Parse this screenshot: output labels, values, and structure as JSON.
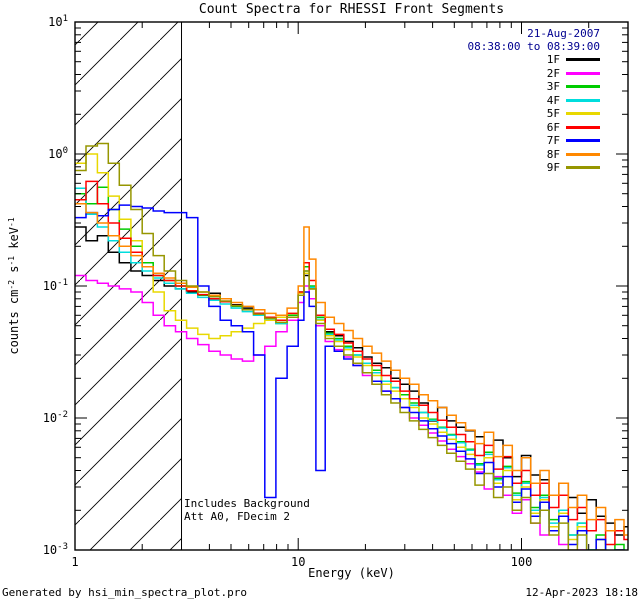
{
  "title": "Count Spectra for RHESSI Front Segments",
  "legend": {
    "date": "21-Aug-2007",
    "time_range": "08:38:00 to 08:39:00",
    "date_color": "#000090"
  },
  "annotations": {
    "line1": "Includes Background",
    "line2": "Att A0, FDecim 2"
  },
  "footer": {
    "left": "Generated by hsi_min_spectra_plot.pro",
    "right": "12-Apr-2023 18:18"
  },
  "chart_data": {
    "type": "line",
    "draw_style": "steps-post",
    "title": "Count Spectra for RHESSI Front Segments",
    "xlabel": "Energy (keV)",
    "ylabel": "counts cm⁻² s⁻¹ keV⁻¹",
    "ylabel_parts": [
      {
        "t": "counts cm"
      },
      {
        "t": "-2",
        "sup": true
      },
      {
        "t": " s"
      },
      {
        "t": "-1",
        "sup": true
      },
      {
        "t": " keV"
      },
      {
        "t": "-1",
        "sup": true
      }
    ],
    "xscale": "log",
    "yscale": "log",
    "xlim": [
      1,
      300
    ],
    "ylim": [
      0.001,
      10
    ],
    "grid": false,
    "legend_position": "top-right",
    "x_ticks": [
      {
        "value": 1,
        "label": "1"
      },
      {
        "value": 10,
        "label": "10"
      },
      {
        "value": 100,
        "label": "100"
      }
    ],
    "y_ticks": [
      {
        "value": 10,
        "base": "10",
        "exp": "1"
      },
      {
        "value": 1,
        "base": "10",
        "exp": "0"
      },
      {
        "value": 0.1,
        "base": "10",
        "exp": "-1"
      },
      {
        "value": 0.01,
        "base": "10",
        "exp": "-2"
      },
      {
        "value": 0.001,
        "base": "10",
        "exp": "-3"
      }
    ],
    "hatched_region": {
      "xmin": 1,
      "xmax": 3
    },
    "energies_keV": [
      1.0,
      1.12,
      1.26,
      1.41,
      1.58,
      1.78,
      2.0,
      2.24,
      2.51,
      2.82,
      3.16,
      3.55,
      3.98,
      4.47,
      5.01,
      5.62,
      6.31,
      7.08,
      7.94,
      8.91,
      10.0,
      10.6,
      11.2,
      12.0,
      13.2,
      14.5,
      16.0,
      17.6,
      19.4,
      21.4,
      23.6,
      26.0,
      28.6,
      31.5,
      34.7,
      38.2,
      42.1,
      46.3,
      51.0,
      56.2,
      61.9,
      68.1,
      75.0,
      82.6,
      91.0,
      100,
      110,
      121,
      133,
      147,
      162,
      178,
      196,
      216,
      238,
      262,
      288
    ],
    "series": [
      {
        "name": "1F",
        "color": "#000000",
        "values": [
          0.28,
          0.22,
          0.24,
          0.18,
          0.15,
          0.13,
          0.12,
          0.11,
          0.1,
          0.095,
          0.09,
          0.085,
          0.088,
          0.08,
          0.072,
          0.068,
          0.062,
          0.058,
          0.055,
          0.06,
          0.085,
          0.12,
          0.095,
          0.06,
          0.045,
          0.042,
          0.038,
          0.034,
          0.029,
          0.026,
          0.024,
          0.02,
          0.018,
          0.016,
          0.013,
          0.0095,
          0.012,
          0.0095,
          0.0085,
          0.008,
          0.0072,
          0.0055,
          0.0068,
          0.005,
          0.0036,
          0.0052,
          0.0037,
          0.0034,
          0.0026,
          0.0032,
          0.0025,
          0.0019,
          0.0024,
          0.0018,
          0.0016,
          0.0013,
          0.0015
        ]
      },
      {
        "name": "2F",
        "color": "#ff00ff",
        "values": [
          0.12,
          0.11,
          0.105,
          0.1,
          0.095,
          0.09,
          0.075,
          0.06,
          0.05,
          0.045,
          0.04,
          0.036,
          0.032,
          0.03,
          0.028,
          0.027,
          0.03,
          0.035,
          0.045,
          0.055,
          0.075,
          0.1,
          0.08,
          0.05,
          0.038,
          0.033,
          0.029,
          0.025,
          0.021,
          0.018,
          0.016,
          0.014,
          0.012,
          0.01,
          0.0088,
          0.0077,
          0.0067,
          0.0058,
          0.0051,
          0.0045,
          0.0039,
          0.0029,
          0.0036,
          0.0026,
          0.0019,
          0.0024,
          0.0016,
          0.0013,
          0.0015,
          0.0011,
          0.0008,
          0.001,
          0.0007,
          0.00085,
          0.0006,
          0.00075,
          0.00055
        ]
      },
      {
        "name": "3F",
        "color": "#00cc00",
        "values": [
          0.5,
          0.42,
          0.56,
          0.38,
          0.27,
          0.2,
          0.15,
          0.12,
          0.11,
          0.1,
          0.092,
          0.085,
          0.08,
          0.076,
          0.07,
          0.066,
          0.06,
          0.056,
          0.052,
          0.06,
          0.09,
          0.14,
          0.1,
          0.058,
          0.044,
          0.04,
          0.035,
          0.03,
          0.026,
          0.023,
          0.019,
          0.017,
          0.015,
          0.013,
          0.011,
          0.0098,
          0.0085,
          0.0075,
          0.0066,
          0.0058,
          0.0045,
          0.0055,
          0.0035,
          0.0043,
          0.0027,
          0.0033,
          0.0021,
          0.0026,
          0.0017,
          0.002,
          0.0013,
          0.0016,
          0.001,
          0.0013,
          0.00085,
          0.0011,
          0.0008
        ]
      },
      {
        "name": "4F",
        "color": "#00dddd",
        "values": [
          0.55,
          0.35,
          0.28,
          0.22,
          0.18,
          0.15,
          0.13,
          0.115,
          0.105,
          0.095,
          0.088,
          0.082,
          0.078,
          0.073,
          0.068,
          0.064,
          0.06,
          0.056,
          0.052,
          0.058,
          0.088,
          0.13,
          0.098,
          0.056,
          0.043,
          0.039,
          0.034,
          0.03,
          0.026,
          0.022,
          0.019,
          0.017,
          0.014,
          0.0125,
          0.011,
          0.0096,
          0.0084,
          0.0074,
          0.0065,
          0.0057,
          0.0044,
          0.0053,
          0.0034,
          0.0042,
          0.0026,
          0.0032,
          0.002,
          0.0025,
          0.0016,
          0.002,
          0.0013,
          0.0016,
          0.001,
          0.0012,
          0.0008,
          0.001,
          0.00075
        ]
      },
      {
        "name": "5F",
        "color": "#e8d800",
        "values": [
          0.85,
          1.0,
          0.72,
          0.48,
          0.32,
          0.22,
          0.14,
          0.09,
          0.065,
          0.055,
          0.048,
          0.043,
          0.04,
          0.042,
          0.045,
          0.048,
          0.052,
          0.055,
          0.058,
          0.062,
          0.088,
          0.125,
          0.095,
          0.055,
          0.042,
          0.038,
          0.033,
          0.029,
          0.025,
          0.021,
          0.018,
          0.016,
          0.014,
          0.012,
          0.01,
          0.009,
          0.0078,
          0.0069,
          0.006,
          0.0053,
          0.0041,
          0.005,
          0.0032,
          0.004,
          0.0024,
          0.003,
          0.0019,
          0.0024,
          0.0015,
          0.0019,
          0.0012,
          0.0015,
          0.00095,
          0.0012,
          0.00075,
          0.001,
          0.0007
        ]
      },
      {
        "name": "6F",
        "color": "#ff0000",
        "values": [
          0.45,
          0.62,
          0.42,
          0.3,
          0.23,
          0.18,
          0.14,
          0.12,
          0.11,
          0.1,
          0.092,
          0.086,
          0.08,
          0.076,
          0.071,
          0.066,
          0.062,
          0.058,
          0.055,
          0.062,
          0.09,
          0.15,
          0.11,
          0.06,
          0.047,
          0.043,
          0.037,
          0.032,
          0.028,
          0.025,
          0.021,
          0.019,
          0.016,
          0.014,
          0.0125,
          0.011,
          0.0096,
          0.0085,
          0.0075,
          0.0066,
          0.0052,
          0.0062,
          0.0041,
          0.0051,
          0.0032,
          0.004,
          0.0026,
          0.0032,
          0.0021,
          0.0026,
          0.0017,
          0.0021,
          0.0014,
          0.0017,
          0.0011,
          0.0014,
          0.0012
        ]
      },
      {
        "name": "7F",
        "color": "#0000ff",
        "values": [
          0.33,
          0.36,
          0.34,
          0.38,
          0.41,
          0.4,
          0.39,
          0.37,
          0.36,
          0.36,
          0.33,
          0.1,
          0.07,
          0.055,
          0.05,
          0.045,
          0.03,
          0.0025,
          0.02,
          0.035,
          0.055,
          0.09,
          0.07,
          0.004,
          0.035,
          0.032,
          0.028,
          0.025,
          0.022,
          0.019,
          0.016,
          0.014,
          0.012,
          0.011,
          0.0095,
          0.0083,
          0.0073,
          0.0064,
          0.0056,
          0.0049,
          0.0038,
          0.0046,
          0.003,
          0.0036,
          0.0023,
          0.0029,
          0.0018,
          0.0023,
          0.0014,
          0.0018,
          0.0011,
          0.0014,
          0.00095,
          0.0012,
          0.0008,
          0.001,
          0.0007
        ]
      },
      {
        "name": "8F",
        "color": "#ff8800",
        "values": [
          0.42,
          0.36,
          0.3,
          0.24,
          0.2,
          0.17,
          0.14,
          0.125,
          0.115,
          0.105,
          0.098,
          0.09,
          0.085,
          0.08,
          0.075,
          0.07,
          0.066,
          0.062,
          0.06,
          0.068,
          0.1,
          0.28,
          0.16,
          0.075,
          0.058,
          0.052,
          0.046,
          0.04,
          0.035,
          0.031,
          0.027,
          0.023,
          0.02,
          0.018,
          0.015,
          0.0135,
          0.012,
          0.0105,
          0.0092,
          0.0081,
          0.0064,
          0.0078,
          0.0051,
          0.0062,
          0.004,
          0.005,
          0.0032,
          0.004,
          0.0026,
          0.0032,
          0.0021,
          0.0026,
          0.0017,
          0.0021,
          0.0014,
          0.0017,
          0.0013
        ]
      },
      {
        "name": "9F",
        "color": "#969600",
        "values": [
          0.75,
          1.15,
          1.2,
          0.85,
          0.58,
          0.38,
          0.25,
          0.17,
          0.13,
          0.11,
          0.1,
          0.09,
          0.083,
          0.077,
          0.071,
          0.066,
          0.061,
          0.057,
          0.053,
          0.058,
          0.085,
          0.13,
          0.095,
          0.052,
          0.04,
          0.035,
          0.03,
          0.026,
          0.022,
          0.018,
          0.015,
          0.013,
          0.011,
          0.0095,
          0.0082,
          0.0071,
          0.0062,
          0.0054,
          0.0047,
          0.0041,
          0.0031,
          0.0038,
          0.0025,
          0.003,
          0.002,
          0.0025,
          0.0016,
          0.002,
          0.0013,
          0.0016,
          0.001,
          0.0013,
          0.0008,
          0.001,
          0.00065,
          0.00085,
          0.0006
        ]
      }
    ]
  }
}
